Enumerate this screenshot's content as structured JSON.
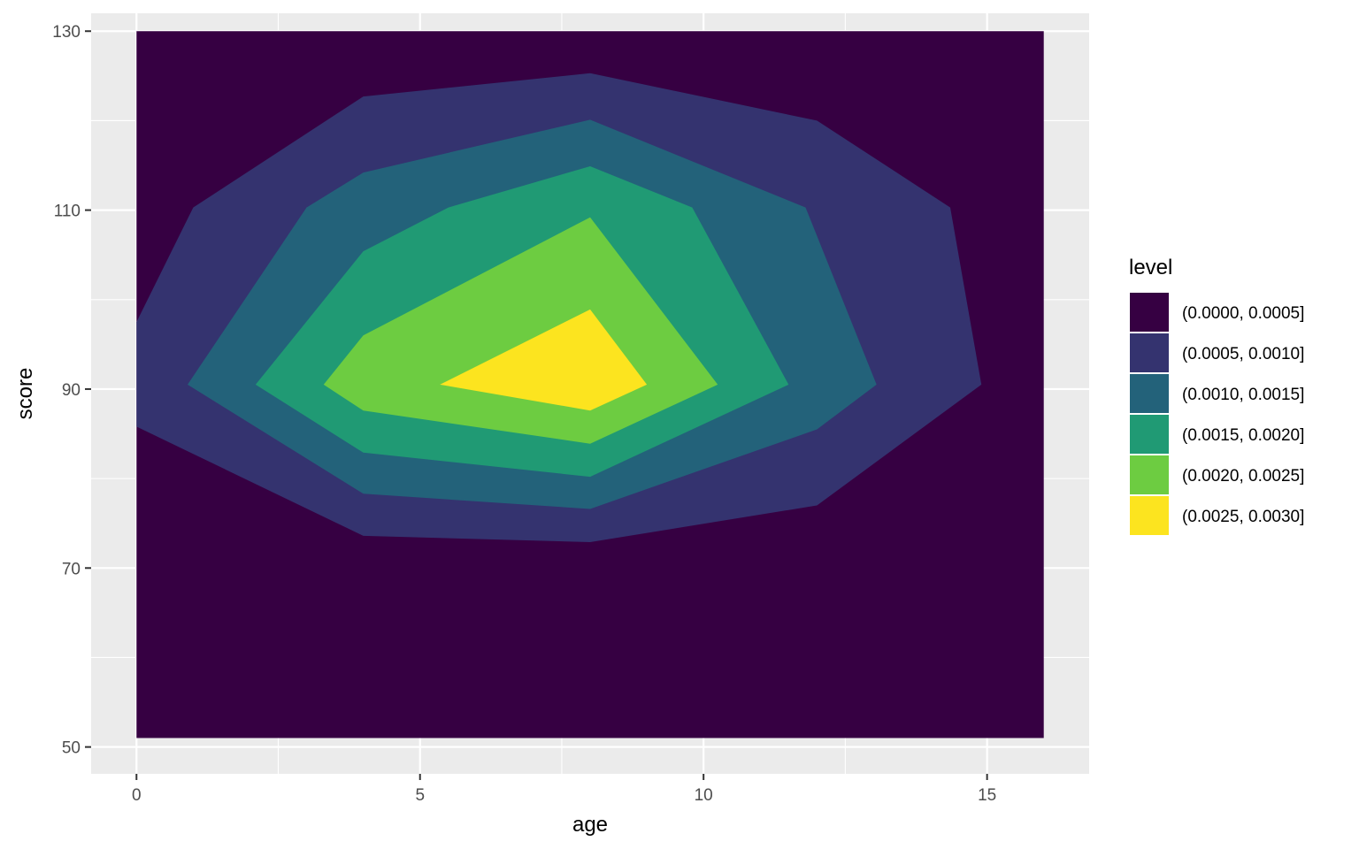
{
  "chart_data": {
    "type": "contour_filled",
    "title": "",
    "xlabel": "age",
    "ylabel": "score",
    "xlim": [
      -0.8,
      16.8
    ],
    "ylim": [
      47,
      132
    ],
    "x_domain": [
      0,
      16
    ],
    "y_domain": [
      51,
      130
    ],
    "x_ticks": [
      0,
      5,
      10,
      15
    ],
    "y_ticks": [
      50,
      70,
      90,
      110,
      130
    ],
    "x_tick_labels": [
      "0",
      "5",
      "10",
      "15"
    ],
    "y_tick_labels": [
      "50",
      "70",
      "90",
      "110",
      "130"
    ],
    "grid": true,
    "legend": {
      "title": "level",
      "position": "right"
    },
    "levels": [
      {
        "label": "(0.0000, 0.0005]",
        "color": "#360042",
        "polygon": [
          [
            0,
            51
          ],
          [
            16,
            51
          ],
          [
            16,
            130
          ],
          [
            0,
            130
          ]
        ]
      },
      {
        "label": "(0.0005, 0.0010]",
        "color": "#34336f",
        "polygon": [
          [
            0,
            97.5
          ],
          [
            1,
            110.3
          ],
          [
            4,
            122.7
          ],
          [
            8,
            125.3
          ],
          [
            12,
            120
          ],
          [
            14.35,
            110.3
          ],
          [
            14.9,
            90.5
          ],
          [
            12,
            77
          ],
          [
            8,
            72.9
          ],
          [
            4,
            73.6
          ],
          [
            0,
            85.8
          ]
        ]
      },
      {
        "label": "(0.0010, 0.0015]",
        "color": "#23627a",
        "polygon": [
          [
            0.9,
            90.5
          ],
          [
            3,
            110.3
          ],
          [
            4,
            114.2
          ],
          [
            8,
            120.1
          ],
          [
            11.8,
            110.3
          ],
          [
            13.05,
            90.5
          ],
          [
            12,
            85.5
          ],
          [
            8,
            76.6
          ],
          [
            4,
            78.3
          ]
        ]
      },
      {
        "label": "(0.0015, 0.0020]",
        "color": "#209a74",
        "polygon": [
          [
            2.1,
            90.5
          ],
          [
            4,
            105.4
          ],
          [
            5.5,
            110.3
          ],
          [
            8,
            114.9
          ],
          [
            9.8,
            110.3
          ],
          [
            11.5,
            90.5
          ],
          [
            8,
            80.2
          ],
          [
            4,
            82.9
          ]
        ]
      },
      {
        "label": "(0.0020, 0.0025]",
        "color": "#6dcc41",
        "polygon": [
          [
            3.3,
            90.5
          ],
          [
            4,
            96
          ],
          [
            8,
            109.2
          ],
          [
            10.25,
            90.5
          ],
          [
            8,
            83.9
          ],
          [
            4,
            87.6
          ]
        ]
      },
      {
        "label": "(0.0025, 0.0030]",
        "color": "#fce41f",
        "polygon": [
          [
            5.35,
            90.5
          ],
          [
            8,
            98.9
          ],
          [
            9,
            90.5
          ],
          [
            8,
            87.6
          ]
        ]
      }
    ]
  }
}
